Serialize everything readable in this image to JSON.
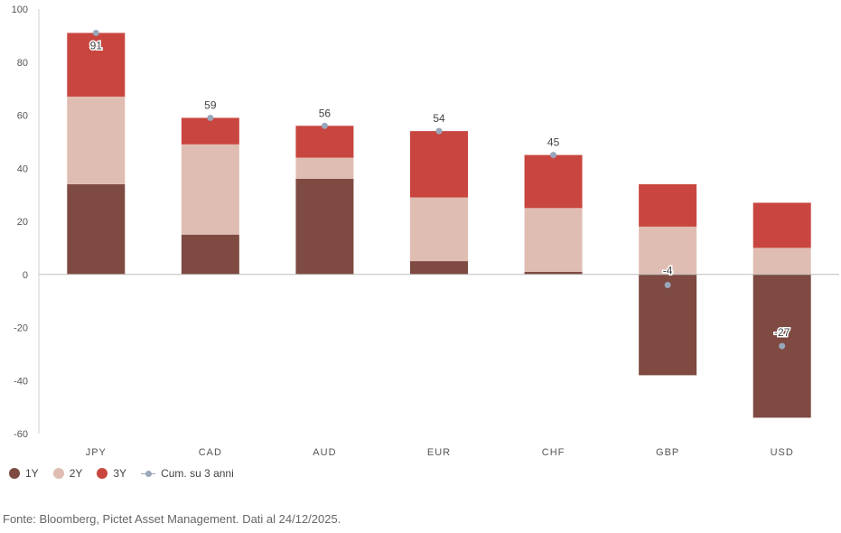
{
  "chart_data": {
    "type": "bar",
    "stacked": true,
    "categories": [
      "JPY",
      "CAD",
      "AUD",
      "EUR",
      "CHF",
      "GBP",
      "USD"
    ],
    "series": [
      {
        "name": "1Y",
        "color": "#7e4a42",
        "values": [
          34,
          15,
          36,
          5,
          1,
          -38,
          -54
        ]
      },
      {
        "name": "2Y",
        "color": "#e0bdb2",
        "values": [
          33,
          34,
          8,
          24,
          24,
          18,
          10
        ]
      },
      {
        "name": "3Y",
        "color": "#c8463f",
        "values": [
          24,
          10,
          12,
          25,
          20,
          16,
          17
        ]
      }
    ],
    "cumulative": {
      "name": "Cum. su 3 anni",
      "color": "#9aa6ba",
      "values": [
        91,
        59,
        56,
        54,
        45,
        -4,
        -27
      ],
      "labels": [
        "91",
        "59",
        "56",
        "54",
        "45",
        "-4",
        "-27"
      ]
    },
    "ylim": [
      -60,
      100
    ],
    "yticks": [
      100,
      80,
      60,
      40,
      20,
      0,
      -20,
      -40,
      -60
    ],
    "legend_position": "bottom-left",
    "grid": false
  },
  "source_text": "Fonte: Bloomberg, Pictet Asset Management. Dati al 24/12/2025."
}
